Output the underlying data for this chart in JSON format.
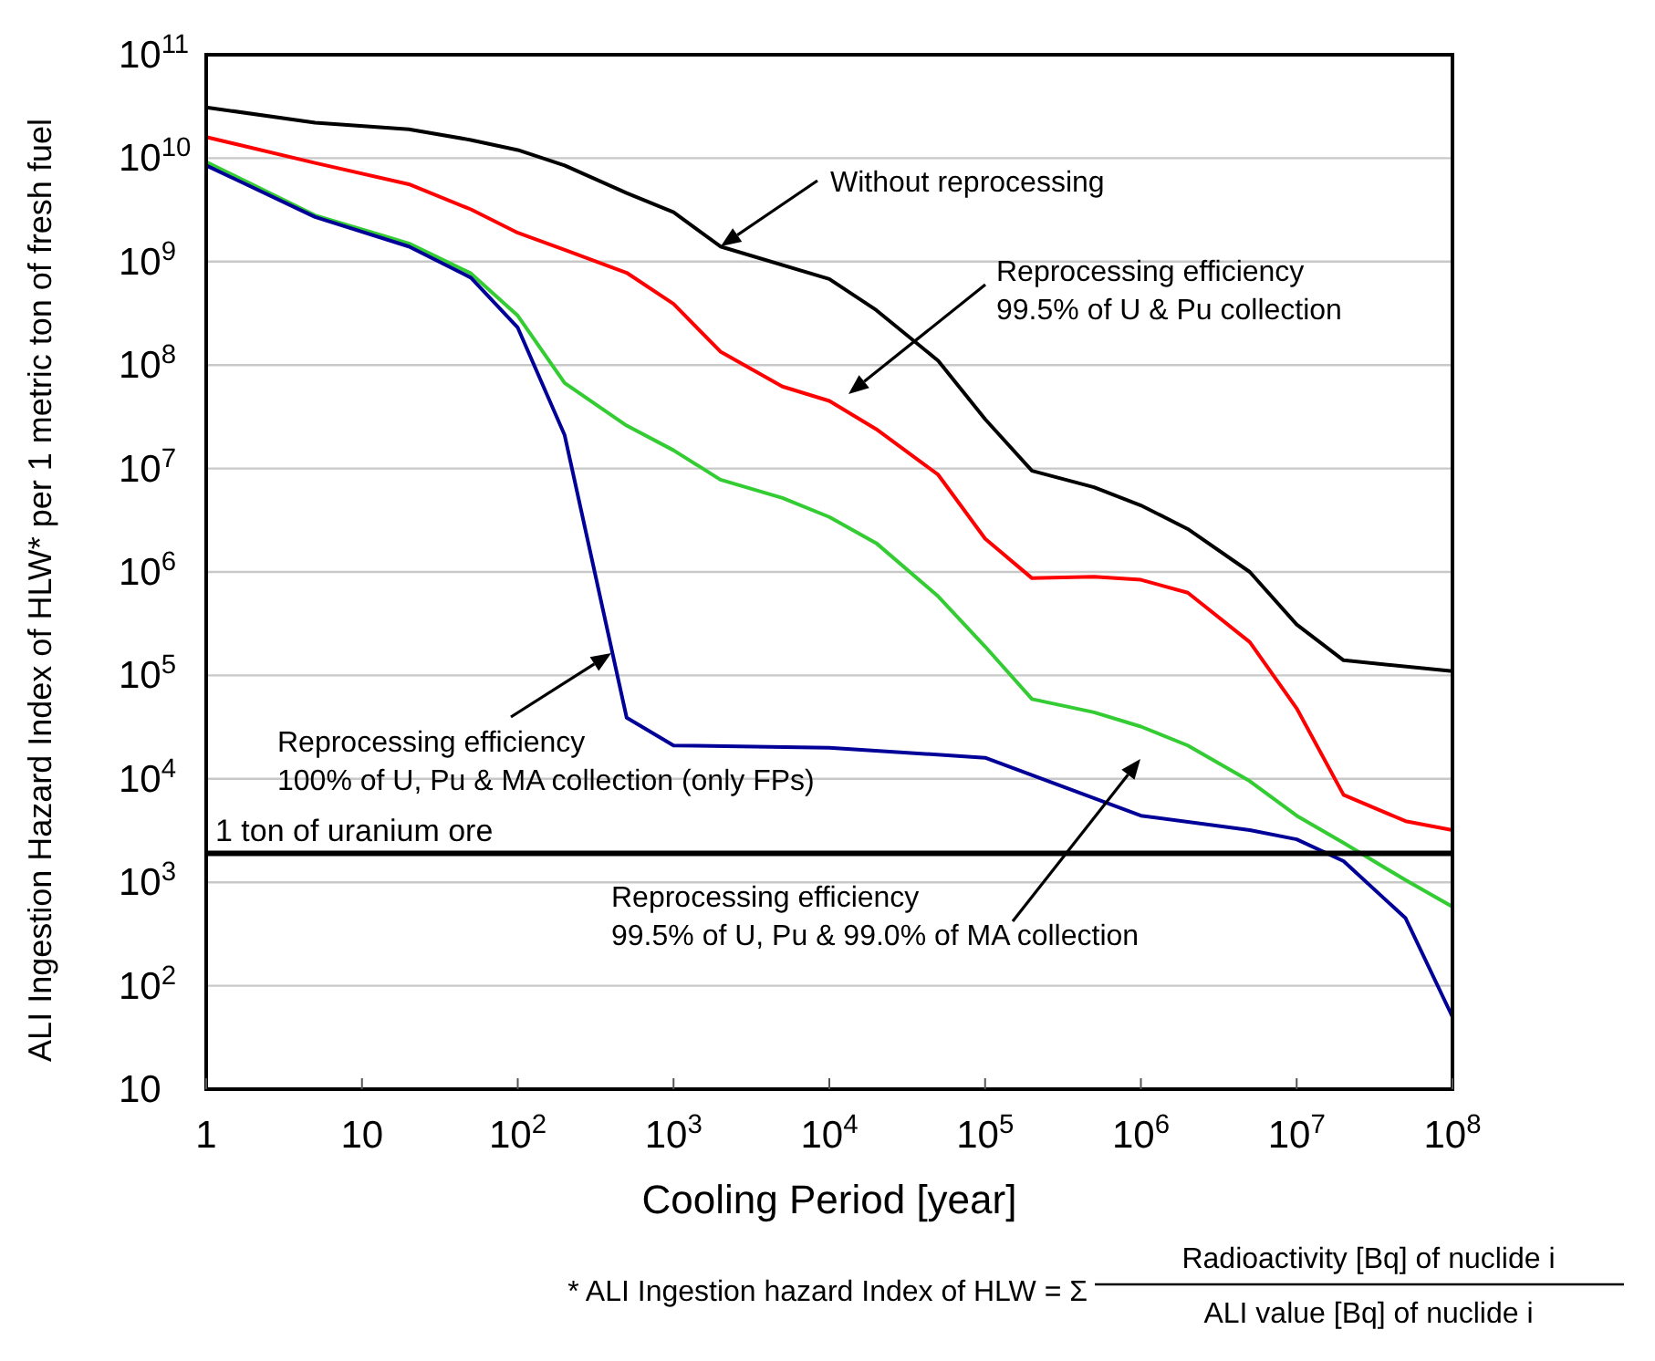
{
  "chart_data": {
    "type": "line",
    "xlabel": "Cooling Period [year]",
    "ylabel": "ALI Ingestion Hazard Index of HLW* per 1 metric ton of fresh fuel",
    "log": "xy",
    "grid": "y",
    "line_style": "solid",
    "marker": "none",
    "xlim": [
      1,
      100000000
    ],
    "xticks": [
      1,
      10,
      {
        "value": 100,
        "label": "10$^{2}$"
      },
      {
        "value": 1000,
        "label": "10$^{3}$"
      },
      {
        "value": 10000,
        "label": "10$^{4}$"
      },
      {
        "value": 100000,
        "label": "10$^{5}$"
      },
      {
        "value": 1000000,
        "label": "10$^{6}$"
      },
      {
        "value": 10000000,
        "label": "10$^{7}$"
      },
      {
        "value": 100000000,
        "label": "10$^{8}$"
      }
    ],
    "ylim": [
      10,
      100000000000
    ],
    "yticks": [
      10,
      {
        "value": 100,
        "label": "10$^{2}$"
      },
      {
        "value": 1000,
        "label": "10$^{3}$"
      },
      {
        "value": 10000,
        "label": "10$^{4}$"
      },
      {
        "value": 100000,
        "label": "10$^{5}$"
      },
      {
        "value": 1000000,
        "label": "10$^{6}$"
      },
      {
        "value": 10000000,
        "label": "10$^{7}$"
      },
      {
        "value": 100000000,
        "label": "10$^{8}$"
      },
      {
        "value": 1000000000,
        "label": "10$^{9}$"
      },
      {
        "value": 10000000000,
        "label": "10$^{10}$"
      },
      {
        "value": 100000000000,
        "label": "10$^{11}$"
      }
    ],
    "series": [
      {
        "color": "#000000",
        "x": [
          1,
          5,
          20,
          50,
          100,
          200,
          500,
          1000,
          2000,
          10000,
          20000,
          50000,
          100000,
          200000,
          500000,
          1000000,
          2000000,
          5000000,
          10000000,
          20000000,
          100000000
        ],
        "values": [
          31000000000,
          22000000000,
          19000000000,
          15000000000,
          12000000000,
          8500000000,
          4600000000,
          3000000000,
          1400000000,
          680000000,
          340000000,
          110000000,
          30000000,
          9500000,
          6600000,
          4400000,
          2600000,
          1000000,
          310000,
          140000,
          110000
        ]
      },
      {
        "color": "#ff0000",
        "x": [
          1,
          5,
          20,
          50,
          100,
          200,
          500,
          1000,
          2000,
          5000,
          10000,
          20000,
          50000,
          100000,
          200000,
          500000,
          1000000,
          2000000,
          5000000,
          10000000,
          20000000,
          50000000,
          100000000
        ],
        "values": [
          16000000000,
          9000000000,
          5600000000,
          3200000000,
          1900000000,
          1300000000,
          780000000,
          390000000,
          135000000,
          62000000,
          45000000,
          24000000,
          8700000,
          2100000,
          870000,
          900000,
          840000,
          630000,
          210000,
          48000,
          7000,
          3900,
          3200
        ]
      },
      {
        "color": "#33cc33",
        "x": [
          1,
          5,
          20,
          50,
          100,
          200,
          500,
          1000,
          2000,
          5000,
          10000,
          20000,
          50000,
          100000,
          200000,
          500000,
          1000000,
          2000000,
          5000000,
          10000000,
          20000000,
          50000000,
          100000000
        ],
        "values": [
          9200000000,
          2800000000,
          1500000000,
          770000000,
          300000000,
          67000000,
          26000000,
          15000000,
          7800000,
          5200000,
          3400000,
          1900000,
          580000,
          190000,
          59000,
          44000,
          32000,
          21000,
          9500,
          4400,
          2400,
          1050,
          580
        ]
      },
      {
        "color": "#000099",
        "x": [
          1,
          5,
          20,
          50,
          100,
          200,
          500,
          1000,
          10000,
          100000,
          1000000,
          5000000,
          10000000,
          20000000,
          50000000,
          100000000
        ],
        "values": [
          8500000000,
          2700000000,
          1400000000,
          700000000,
          230000000,
          21000000,
          39000,
          21000,
          20000,
          16000,
          4400,
          3200,
          2600,
          1600,
          450,
          50
        ]
      }
    ],
    "ref_lines": [
      {
        "axis": "y",
        "value": 1900,
        "label": "1 ton of uranium ore",
        "color": "#000000"
      }
    ],
    "annotations": [
      "Without reprocessing",
      "Reprocessing efficiency\n99.5% of U & Pu collection",
      "Reprocessing efficiency\n100% of U, Pu & MA collection (only FPs)",
      "Reprocessing efficiency\n99.5% of U, Pu & 99.0% of MA collection",
      "* ALI Ingestion hazard Index of HLW = Σ",
      "Radioactivity [Bq] of  nuclide i",
      "ALI value [Bq] of nuclide i"
    ]
  }
}
